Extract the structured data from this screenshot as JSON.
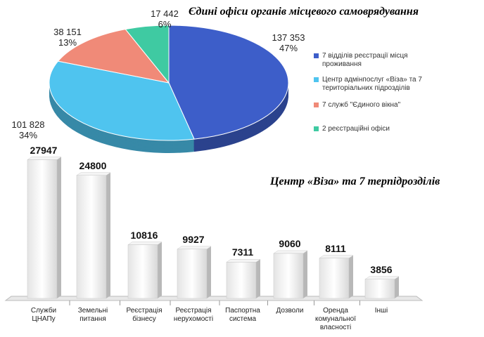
{
  "chart_data": [
    {
      "type": "pie",
      "title": "Єдині офіси органів місцевого самоврядування",
      "categories": [
        "7 відділів реєстрації місця проживання",
        "Центр адмінпослуг «Віза» та 7 територіальних підрозділів",
        "7 служб \"Єдиного вікна\"",
        "2 реєстраційні офіси"
      ],
      "values": [
        137353,
        101828,
        38151,
        17442
      ],
      "value_labels": [
        "137 353",
        "101 828",
        "38 151",
        "17 442"
      ],
      "percent_labels": [
        "47%",
        "34%",
        "13%",
        "6%"
      ],
      "colors": [
        "#3d5ec9",
        "#4fc4ef",
        "#f08a78",
        "#3fcaa2"
      ]
    },
    {
      "type": "bar",
      "title": "Центр «Віза» та 7 терпідрозділів",
      "categories": [
        "Служби\nЦНАПу",
        "Земельні\nпитання",
        "Реєстрація\nбізнесу",
        "Реєстрація\nнерухомості",
        "Паспортна\nсистема",
        "Дозволи",
        "Оренда\nкомунальної\nвласності",
        "Інші"
      ],
      "values": [
        27947,
        24800,
        10816,
        9927,
        7311,
        9060,
        8111,
        3856
      ],
      "ylim": [
        0,
        30000
      ]
    }
  ]
}
